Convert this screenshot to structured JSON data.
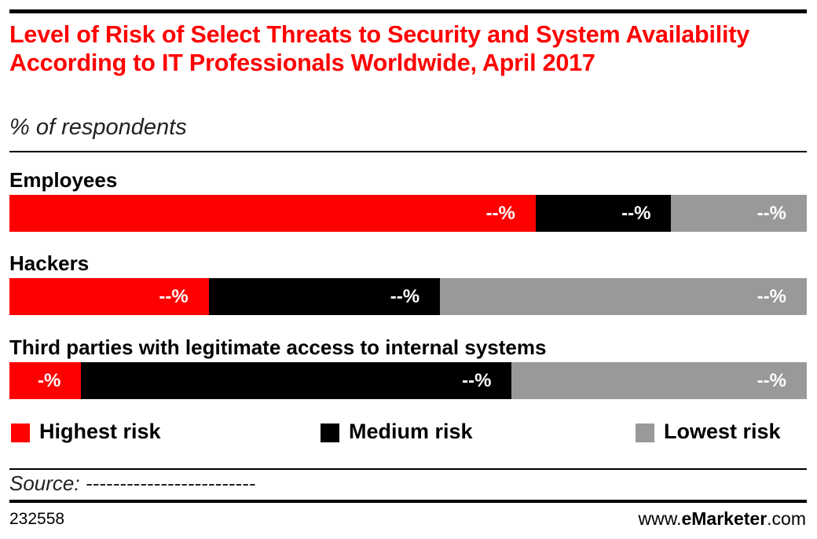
{
  "chart_data": {
    "type": "stacked_bar_100",
    "title": "Level of Risk of Select Threats to Security and System Availability According to IT Professionals Worldwide, April 2017",
    "subtitle": "% of respondents",
    "categories": [
      "Employees",
      "Hackers",
      "Third parties with legitimate access to internal systems"
    ],
    "series": [
      {
        "name": "Highest risk",
        "color": "#ff0000",
        "values": [
          66,
          25,
          9
        ],
        "value_labels": [
          "--%",
          "--%",
          "-%"
        ]
      },
      {
        "name": "Medium risk",
        "color": "#000000",
        "values": [
          17,
          29,
          54
        ],
        "value_labels": [
          "--%",
          "--%",
          "--%"
        ]
      },
      {
        "name": "Lowest risk",
        "color": "#999999",
        "values": [
          17,
          46,
          37
        ],
        "value_labels": [
          "--%",
          "--%",
          "--%"
        ]
      }
    ],
    "source": "Source: -------------------------",
    "chart_id": "232558",
    "site": {
      "prefix": "www.",
      "brand": "eMarketer",
      "suffix": ".com"
    }
  }
}
